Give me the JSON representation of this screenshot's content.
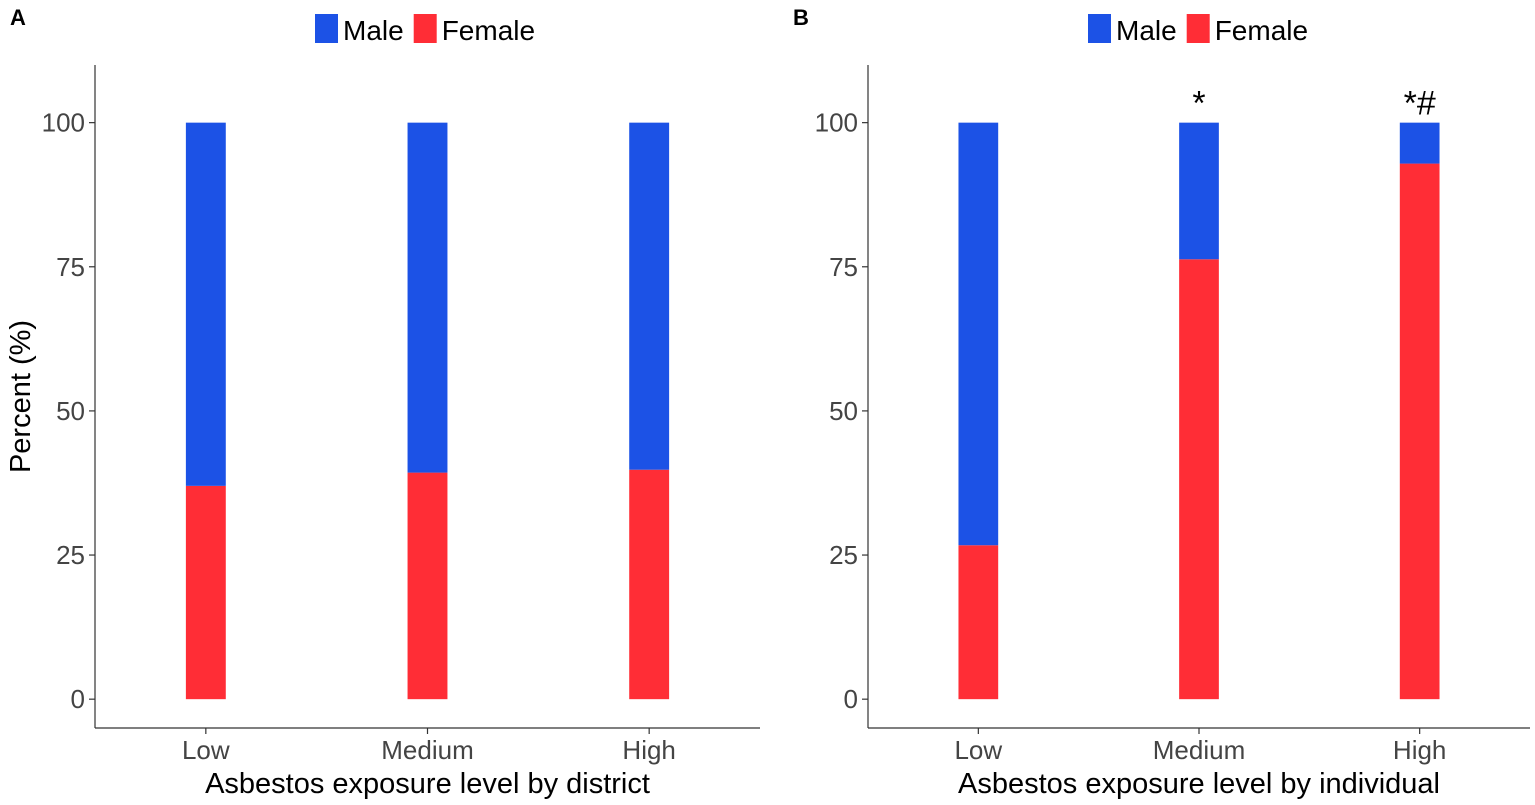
{
  "chart_data": [
    {
      "panel": "A",
      "type": "bar",
      "stacked": true,
      "categories": [
        "Low",
        "Medium",
        "High"
      ],
      "series": [
        {
          "name": "Female",
          "values": [
            37,
            39.3,
            39.8
          ]
        },
        {
          "name": "Male",
          "values": [
            63,
            60.7,
            60.2
          ]
        }
      ],
      "legend": [
        "Male",
        "Female"
      ],
      "legend_position": "top",
      "xlabel": "Asbestos exposure level by district",
      "ylabel": "Percent (%)",
      "ylim": [
        -5,
        110
      ],
      "yticks": [
        0,
        25,
        50,
        75,
        100
      ],
      "annotations": []
    },
    {
      "panel": "B",
      "type": "bar",
      "stacked": true,
      "categories": [
        "Low",
        "Medium",
        "High"
      ],
      "series": [
        {
          "name": "Female",
          "values": [
            26.7,
            76.3,
            92.9
          ]
        },
        {
          "name": "Male",
          "values": [
            73.3,
            23.7,
            7.1
          ]
        }
      ],
      "legend": [
        "Male",
        "Female"
      ],
      "legend_position": "top",
      "xlabel": "Asbestos exposure level by individual",
      "ylabel": "",
      "ylim": [
        -5,
        110
      ],
      "yticks": [
        0,
        25,
        50,
        75,
        100
      ],
      "annotations": [
        {
          "category": "Medium",
          "text": "*"
        },
        {
          "category": "High",
          "text": "*#"
        }
      ]
    }
  ],
  "colors": {
    "Male": "#1c52e6",
    "Female": "#ff2d36"
  }
}
